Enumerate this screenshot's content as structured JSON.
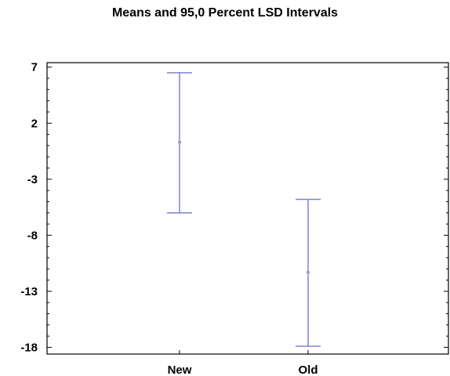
{
  "chart_data": {
    "type": "interval",
    "title": "Means and 95,0 Percent LSD Intervals",
    "xlabel": "",
    "ylabel": "",
    "categories": [
      "New",
      "Old"
    ],
    "means": [
      0.3,
      -11.3
    ],
    "lower": [
      -6.0,
      -17.9
    ],
    "upper": [
      6.5,
      -4.8
    ],
    "yticks": [
      7,
      2,
      -3,
      -8,
      -13,
      -18
    ],
    "ylim": [
      -18.6,
      7.4
    ],
    "grid": false,
    "colors": {
      "interval": "#8080d0",
      "axis": "#000000"
    }
  }
}
